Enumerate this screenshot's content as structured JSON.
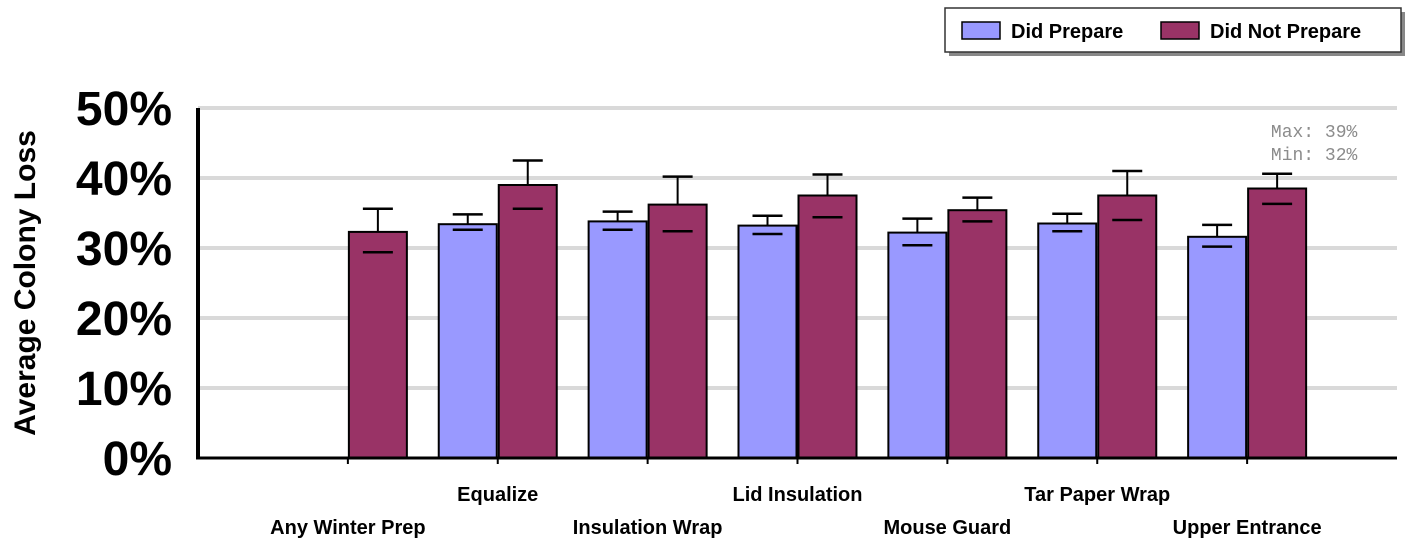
{
  "chart_data": {
    "type": "bar",
    "ylabel": "Average Colony Loss",
    "xlabel": "",
    "ylim": [
      0,
      50
    ],
    "yticks": [
      "0%",
      "10%",
      "20%",
      "30%",
      "40%",
      "50%"
    ],
    "grid": true,
    "legend_position": "top-right",
    "categories": [
      "Any Winter Prep",
      "Equalize",
      "Insulation Wrap",
      "Lid Insulation",
      "Mouse Guard",
      "Tar Paper Wrap",
      "Upper Entrance"
    ],
    "series": [
      {
        "name": "Did Prepare",
        "color": "#9999ff",
        "values": [
          null,
          33.4,
          33.8,
          33.2,
          32.2,
          33.5,
          31.6
        ],
        "err_low": [
          null,
          32.6,
          32.6,
          32.0,
          30.4,
          32.4,
          30.2
        ],
        "err_high": [
          null,
          34.8,
          35.2,
          34.6,
          34.2,
          34.9,
          33.3
        ]
      },
      {
        "name": "Did Not Prepare",
        "color": "#993366",
        "values": [
          32.3,
          39.0,
          36.2,
          37.5,
          35.4,
          37.5,
          38.5
        ],
        "err_low": [
          29.4,
          35.6,
          32.4,
          34.4,
          33.8,
          34.0,
          36.3
        ],
        "err_high": [
          35.6,
          42.5,
          40.2,
          40.5,
          37.2,
          41.0,
          40.6
        ]
      }
    ],
    "annotation": {
      "lines": [
        "Max: 39%",
        "Min: 32%"
      ],
      "category": "Upper Entrance"
    }
  }
}
